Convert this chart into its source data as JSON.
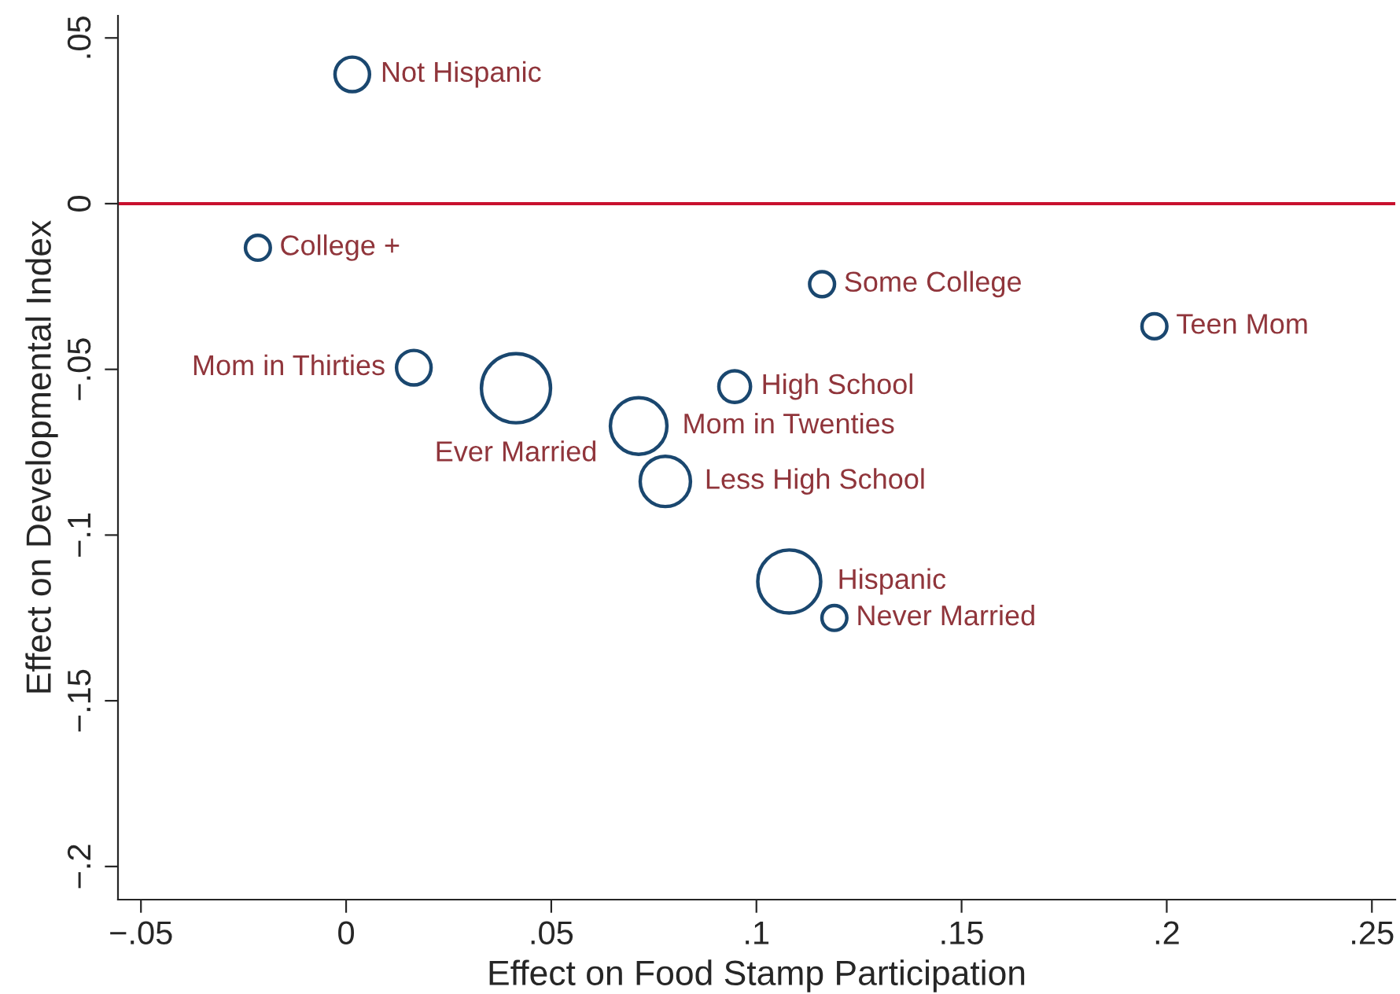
{
  "chart_data": {
    "type": "bubble",
    "xlabel": "Effect on Food Stamp Participation",
    "ylabel": "Effect on Developmental Index",
    "x": [
      0.0015,
      -0.0215,
      0.116,
      0.197,
      0.0165,
      0.0414,
      0.0947,
      0.0713,
      0.0778,
      0.108,
      0.119
    ],
    "values": [
      0.039,
      -0.0133,
      -0.0243,
      -0.037,
      -0.0495,
      -0.0557,
      -0.0552,
      -0.0671,
      -0.0838,
      -0.114,
      -0.125
    ],
    "sizes": [
      0.25,
      0.13,
      0.13,
      0.13,
      0.25,
      1,
      0.21,
      0.67,
      0.53,
      0.83,
      0.13
    ],
    "value_labels": [
      "Not Hispanic",
      "College +",
      "Some College",
      "Teen Mom",
      "Mom in Thirties",
      "Ever Married",
      "High School",
      "Mom in Twenties",
      "Less High School",
      "Hispanic",
      "Never Married"
    ],
    "color": "#1a476f",
    "xlim": [
      -0.0556,
      0.2557
    ],
    "ylim": [
      -0.21,
      0.0567
    ],
    "xticks": [
      {
        "value": -0.05,
        "label": "−.05"
      },
      {
        "value": 0,
        "label": "0"
      },
      {
        "value": 0.05,
        "label": ".05"
      },
      {
        "value": 0.1,
        "label": ".1"
      },
      {
        "value": 0.15,
        "label": ".15"
      },
      {
        "value": 0.2,
        "label": ".2"
      },
      {
        "value": 0.25,
        "label": ".25"
      }
    ],
    "yticks": [
      {
        "value": 0.05,
        "label": ".05"
      },
      {
        "value": 0,
        "label": "0"
      },
      {
        "value": -0.05,
        "label": "−.05"
      },
      {
        "value": -0.1,
        "label": "−.1"
      },
      {
        "value": -0.15,
        "label": "−.15"
      },
      {
        "value": -0.2,
        "label": "−.2"
      }
    ],
    "ref_lines": [
      {
        "axis": "y",
        "value": 0,
        "color": "#c8102e"
      }
    ],
    "grid": false
  }
}
